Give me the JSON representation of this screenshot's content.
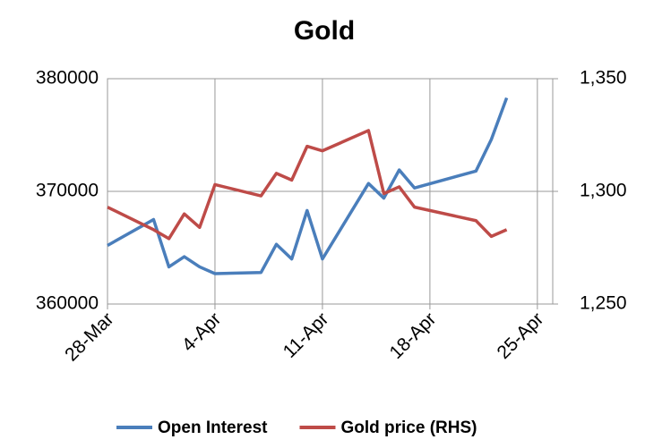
{
  "chart_data": {
    "type": "line",
    "title": "Gold",
    "x": [
      "28-Mar",
      "31-Mar",
      "1-Apr",
      "2-Apr",
      "3-Apr",
      "4-Apr",
      "7-Apr",
      "8-Apr",
      "9-Apr",
      "10-Apr",
      "11-Apr",
      "14-Apr",
      "15-Apr",
      "16-Apr",
      "17-Apr",
      "21-Apr",
      "22-Apr",
      "23-Apr"
    ],
    "xlim": [
      "28-Mar",
      "26-Apr"
    ],
    "xticks": [
      "28-Mar",
      "4-Apr",
      "11-Apr",
      "18-Apr",
      "25-Apr"
    ],
    "ylim": [
      360000,
      380000
    ],
    "yticks": [
      360000,
      370000,
      380000
    ],
    "y2lim": [
      1250,
      1350
    ],
    "y2ticks": [
      {
        "value": 1250,
        "label": "1,250"
      },
      {
        "value": 1300,
        "label": "1,300"
      },
      {
        "value": 1350,
        "label": "1,350"
      }
    ],
    "grid": true,
    "legend": "bottom",
    "series": [
      {
        "name": "Open Interest",
        "color": "#4a7ebb",
        "values": [
          365200,
          367500,
          363300,
          364200,
          363300,
          362700,
          362800,
          365300,
          364000,
          368300,
          364000,
          370700,
          369400,
          371900,
          370300,
          371800,
          374600,
          378300
        ]
      },
      {
        "name": "Gold price (RHS)",
        "color": "#be4b48",
        "axis": "y2",
        "values": [
          1293,
          1283,
          1279,
          1290,
          1284,
          1303,
          1298,
          1308,
          1305,
          1320,
          1318,
          1327,
          1299,
          1302,
          1293,
          1287,
          1280,
          1283
        ]
      }
    ]
  }
}
